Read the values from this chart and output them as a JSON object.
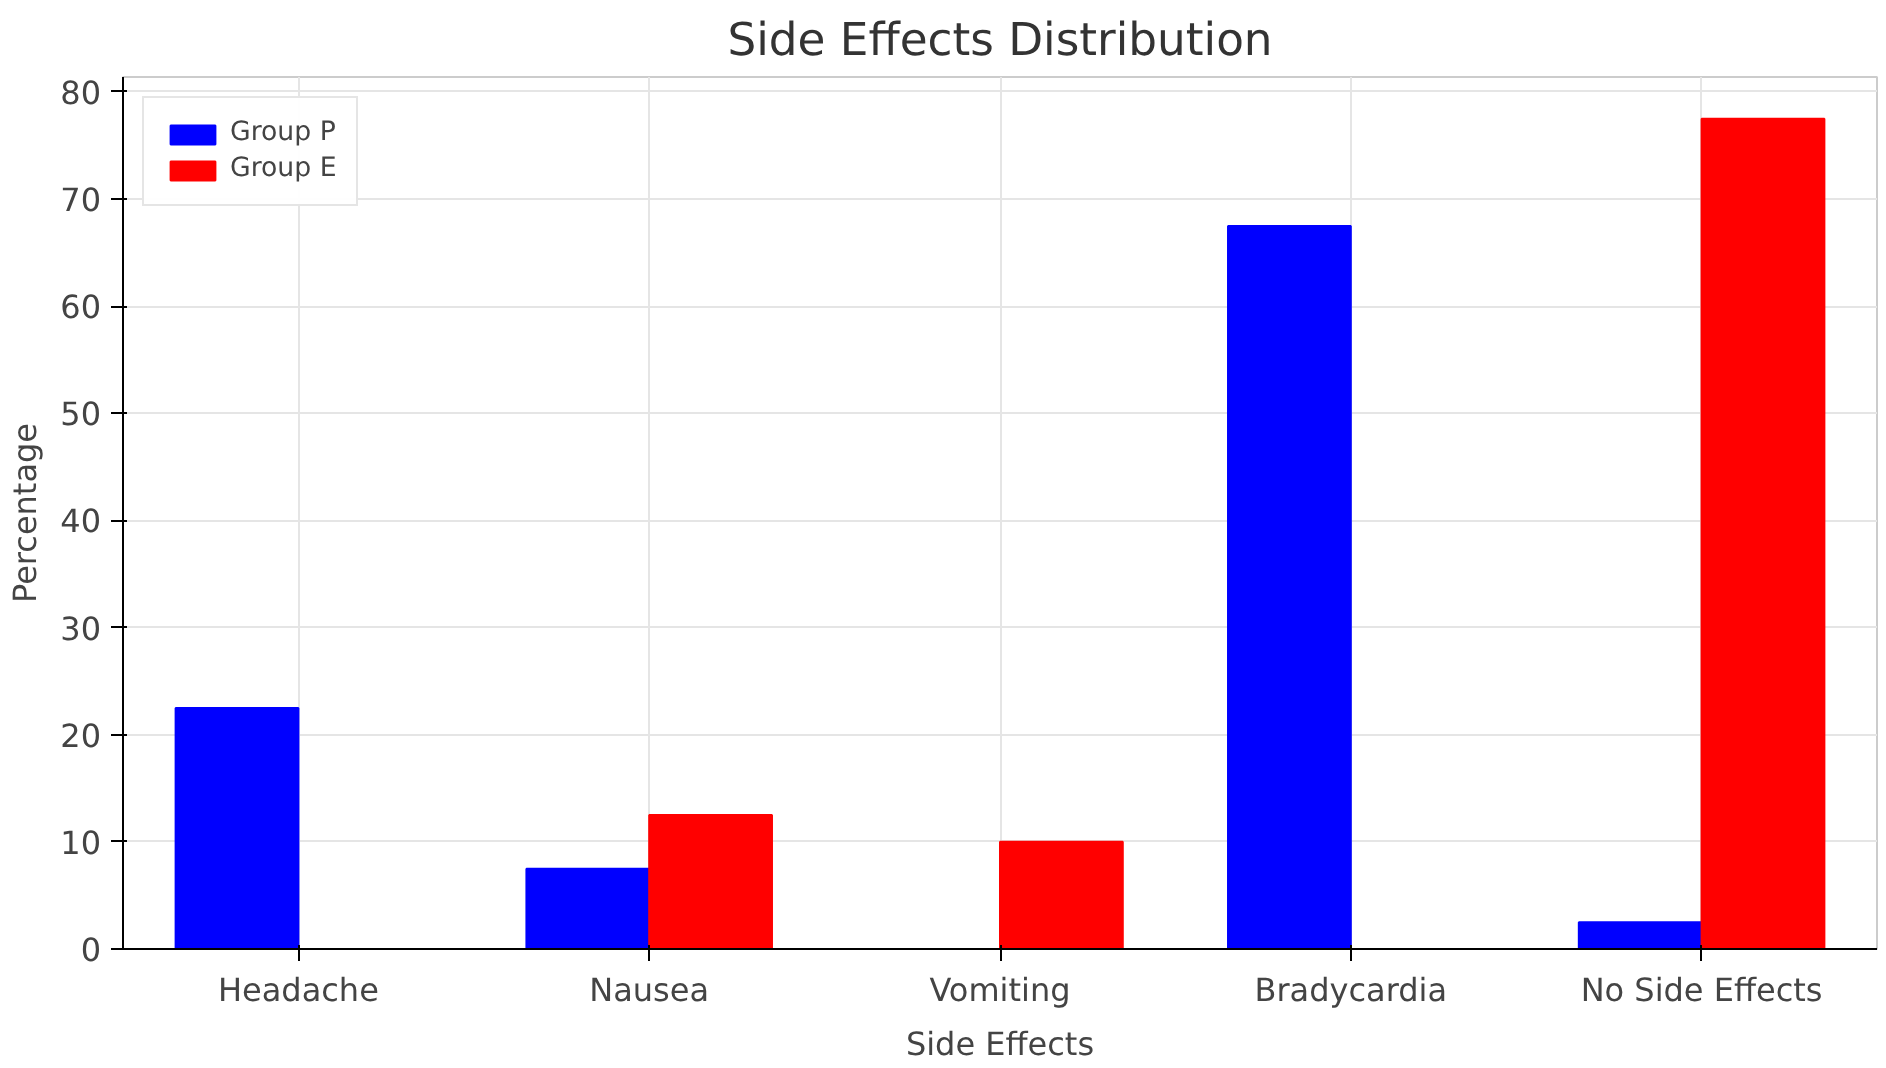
{
  "chart_data": {
    "type": "bar",
    "title": "Side Effects Distribution",
    "xlabel": "Side Effects",
    "ylabel": "Percentage",
    "categories": [
      "Headache",
      "Nausea",
      "Vomiting",
      "Bradycardia",
      "No Side Effects"
    ],
    "series": [
      {
        "name": "Group P",
        "color": "#0000ff",
        "values": [
          22.5,
          7.5,
          0,
          67.5,
          2.5
        ]
      },
      {
        "name": "Group E",
        "color": "#ff0000",
        "values": [
          0,
          12.5,
          10,
          0,
          77.5
        ]
      }
    ],
    "ylim": [
      0,
      81.4
    ],
    "yticks": [
      0,
      10,
      20,
      30,
      40,
      50,
      60,
      70,
      80
    ],
    "grid": true,
    "legend": "top left"
  }
}
